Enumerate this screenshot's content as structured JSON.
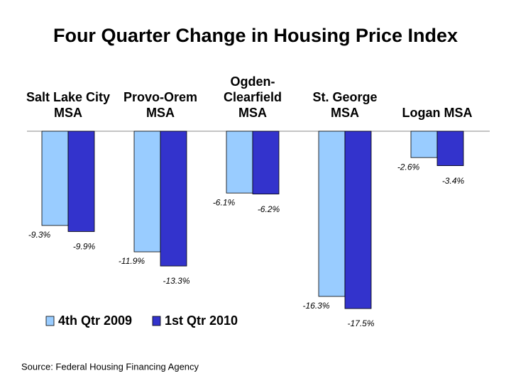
{
  "chart_data": {
    "type": "bar",
    "title": "Four Quarter Change in Housing Price Index",
    "categories": [
      "Salt Lake City MSA",
      "Provo-Orem MSA",
      "Ogden-Clearfield MSA",
      "St. George MSA",
      "Logan MSA"
    ],
    "series": [
      {
        "name": "4th Qtr 2009",
        "color": "#99ccff",
        "values": [
          -9.3,
          -11.9,
          -6.1,
          -16.3,
          -2.6
        ],
        "value_labels": [
          "-9.3%",
          "-11.9%",
          "-6.1%",
          "-16.3%",
          "-2.6%"
        ]
      },
      {
        "name": "1st Qtr 2010",
        "color": "#3333cc",
        "values": [
          -9.9,
          -13.3,
          -6.2,
          -17.5,
          -3.4
        ],
        "value_labels": [
          "-9.9%",
          "-13.3%",
          "-6.2%",
          "-17.5%",
          "-3.4%"
        ]
      }
    ],
    "source": "Source: Federal Housing Financing Agency"
  }
}
